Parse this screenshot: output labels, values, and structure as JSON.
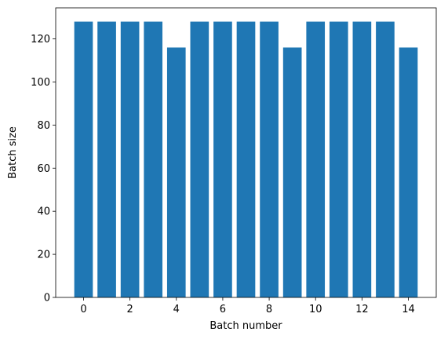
{
  "chart_data": {
    "type": "bar",
    "title": "",
    "xlabel": "Batch number",
    "ylabel": "Batch size",
    "categories": [
      0,
      1,
      2,
      3,
      4,
      5,
      6,
      7,
      8,
      9,
      10,
      11,
      12,
      13,
      14
    ],
    "values": [
      128,
      128,
      128,
      128,
      116,
      128,
      128,
      128,
      128,
      116,
      128,
      128,
      128,
      128,
      116
    ],
    "xlim": [
      -1.2,
      15.2
    ],
    "ylim": [
      0,
      134.4
    ],
    "xticks": [
      0,
      2,
      4,
      6,
      8,
      10,
      12,
      14
    ],
    "yticks": [
      0,
      20,
      40,
      60,
      80,
      100,
      120
    ],
    "bar_color": "#1f77b4",
    "grid": false,
    "legend": "none"
  }
}
